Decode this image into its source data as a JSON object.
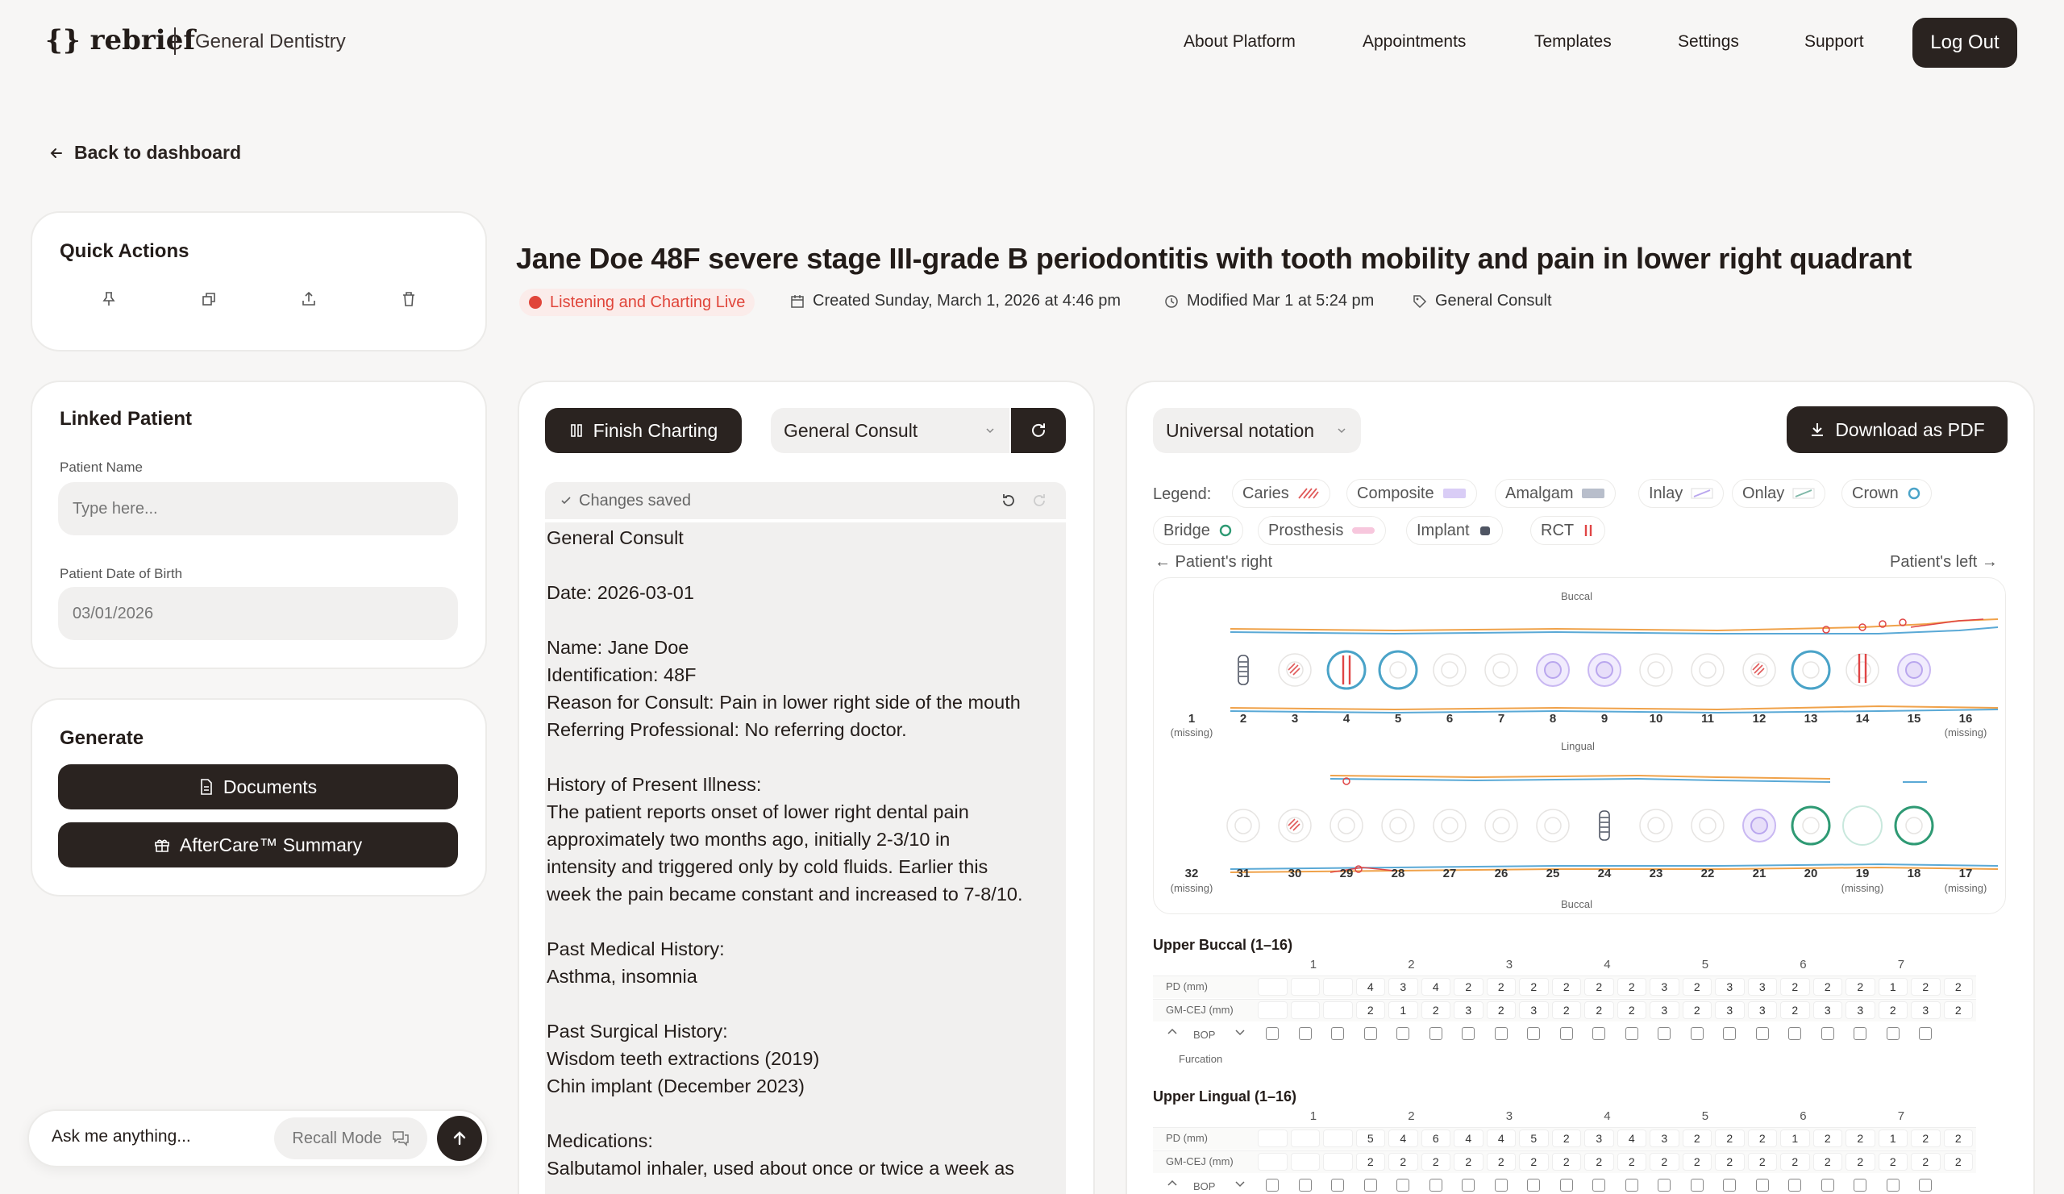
{
  "header": {
    "logo": "{} rebrief",
    "practice": "General Dentistry",
    "nav": [
      "About Platform",
      "Appointments",
      "Templates",
      "Settings",
      "Support"
    ],
    "logout": "Log Out"
  },
  "back_label": "Back to dashboard",
  "quick_actions": {
    "title": "Quick Actions",
    "icons": [
      "pin-icon",
      "copy-icon",
      "share-icon",
      "trash-icon"
    ]
  },
  "linked_patient": {
    "title": "Linked Patient",
    "name_label": "Patient Name",
    "name_placeholder": "Type here...",
    "dob_label": "Patient Date of Birth",
    "dob_value": "03/01/2026"
  },
  "generate": {
    "title": "Generate",
    "documents": "Documents",
    "aftercare": "AfterCare™ Summary"
  },
  "ask": {
    "placeholder": "Ask me anything...",
    "recall": "Recall Mode"
  },
  "note": {
    "title": "Jane Doe 48F severe stage III-grade B periodontitis with tooth mobility and pain in lower right quadrant",
    "status": "Listening and Charting Live",
    "created": "Created Sunday, March 1, 2026 at 4:46 pm",
    "modified": "Modified Mar 1 at 5:24 pm",
    "tag": "General Consult"
  },
  "editor": {
    "finish": "Finish Charting",
    "template": "General Consult",
    "saved": "Changes saved",
    "body": "General Consult\n\nDate: 2026-03-01\n\nName: Jane Doe\nIdentification: 48F\nReason for Consult: Pain in lower right side of the mouth\nReferring Professional: No referring doctor.\n\nHistory of Present Illness:\nThe patient reports onset of lower right dental pain\napproximately two months ago, initially 2-3/10 in\nintensity and triggered only by cold fluids. Earlier this\nweek the pain became constant and increased to 7-8/10.\n\nPast Medical History:\nAsthma, insomnia\n\nPast Surgical History:\nWisdom teeth extractions (2019)\nChin implant (December 2023)\n\nMedications:\nSalbutamol inhaler, used about once or twice a week as"
  },
  "chart": {
    "notation": "Universal notation",
    "download": "Download as PDF",
    "legend_label": "Legend:",
    "legend": [
      {
        "label": "Caries",
        "color": "#e05a5a"
      },
      {
        "label": "Composite",
        "color": "#c9b8f2"
      },
      {
        "label": "Amalgam",
        "color": "#9aa3b5"
      },
      {
        "label": "Inlay",
        "color": "#b9a6ee"
      },
      {
        "label": "Onlay",
        "color": "#7fb8a8"
      },
      {
        "label": "Crown",
        "color": "#4aa3c8"
      },
      {
        "label": "Bridge",
        "color": "#2f9a74"
      },
      {
        "label": "Prosthesis",
        "color": "#f2a2c7"
      },
      {
        "label": "Implant",
        "color": "#4f5563"
      },
      {
        "label": "RCT",
        "color": "#e04545"
      }
    ],
    "patient_right": "← Patient's right",
    "patient_left": "Patient's left →",
    "buccal": "Buccal",
    "lingual": "Lingual",
    "missing": "(missing)",
    "upper": [
      "1",
      "2",
      "3",
      "4",
      "5",
      "6",
      "7",
      "8",
      "9",
      "10",
      "11",
      "12",
      "13",
      "14",
      "15",
      "16"
    ],
    "lower": [
      "32",
      "31",
      "30",
      "29",
      "28",
      "27",
      "26",
      "25",
      "24",
      "23",
      "22",
      "21",
      "20",
      "19",
      "18",
      "17"
    ],
    "upper_buccal_title": "Upper Buccal (1–16)",
    "upper_lingual_title": "Upper Lingual (1–16)",
    "row_labels": {
      "pd": "PD (mm)",
      "gm": "GM-CEJ (mm)",
      "bop": "BOP",
      "furc": "Furcation"
    },
    "table_cols": [
      "1",
      "2",
      "3",
      "4",
      "5",
      "6",
      "7"
    ],
    "ub_pd": [
      "",
      "",
      "",
      "4",
      "3",
      "4",
      "2",
      "2",
      "2",
      "2",
      "2",
      "2",
      "3",
      "2",
      "3",
      "3",
      "2",
      "2",
      "2",
      "1",
      "2",
      "2"
    ],
    "ub_gm": [
      "",
      "",
      "",
      "2",
      "1",
      "2",
      "3",
      "2",
      "3",
      "2",
      "2",
      "2",
      "3",
      "2",
      "3",
      "3",
      "2",
      "3",
      "3",
      "2",
      "3",
      "2"
    ],
    "ul_pd": [
      "",
      "",
      "",
      "5",
      "4",
      "6",
      "4",
      "4",
      "5",
      "2",
      "3",
      "4",
      "3",
      "2",
      "2",
      "2",
      "1",
      "2",
      "2",
      "1",
      "2",
      "2"
    ],
    "ul_gm": [
      "",
      "",
      "",
      "2",
      "2",
      "2",
      "2",
      "2",
      "2",
      "2",
      "2",
      "2",
      "2",
      "2",
      "2",
      "2",
      "2",
      "2",
      "2",
      "2",
      "2",
      "2"
    ]
  }
}
